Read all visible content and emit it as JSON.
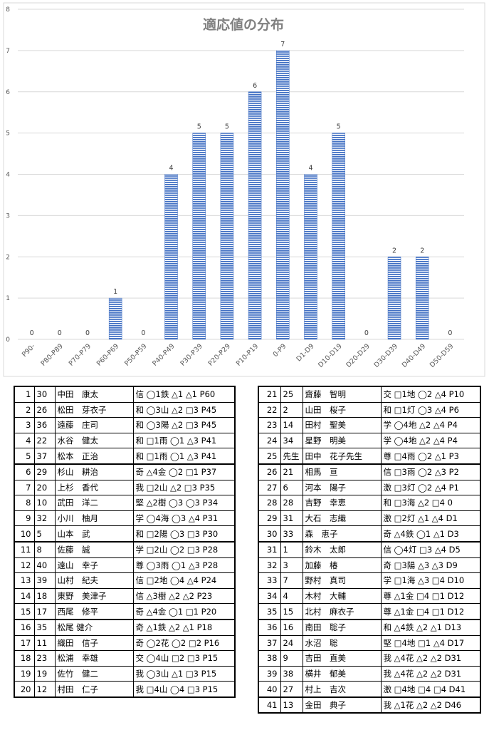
{
  "chart_data": {
    "type": "bar",
    "title": "適応値の分布",
    "categories": [
      "P90-",
      "P80-P89",
      "P70-P79",
      "P60-P69",
      "P50-P59",
      "P40-P49",
      "P30-P39",
      "P20-P29",
      "P10-P19",
      "0-P9",
      "D1-D9",
      "D10-D19",
      "D20-D29",
      "D30-D39",
      "D40-D49",
      "D50-D59"
    ],
    "values": [
      0,
      0,
      0,
      1,
      0,
      4,
      5,
      5,
      6,
      7,
      4,
      5,
      0,
      2,
      2,
      0
    ],
    "ylim": [
      0,
      8
    ],
    "yticks": [
      "0",
      "1",
      "2",
      "3",
      "4",
      "5",
      "6",
      "7",
      "8"
    ],
    "grid": true,
    "bar_color": "#4472C4",
    "xlabel": "",
    "ylabel": ""
  },
  "table_left": [
    [
      "1",
      "30",
      "中田　康太",
      "信 ◯1鉄 △1 △1 P60"
    ],
    [
      "2",
      "26",
      "松田　芽衣子",
      "和 ◯3山 △2 □3 P45"
    ],
    [
      "3",
      "36",
      "遠藤　庄司",
      "和 ◯3陽 △2 □3 P45"
    ],
    [
      "4",
      "22",
      "水谷　健太",
      "和 □1雨 ◯1 △3 P41"
    ],
    [
      "5",
      "37",
      "松本　正治",
      "和 □1雨 ◯1 △3 P41"
    ],
    [
      "6",
      "29",
      "杉山　耕治",
      "奇 △4金 ◯2 □1 P37"
    ],
    [
      "7",
      "20",
      "上杉　香代",
      "我 □2山 △2 □3 P35"
    ],
    [
      "8",
      "10",
      "武田　洋二",
      "堅 △2樹 ◯3 ◯3 P34"
    ],
    [
      "9",
      "32",
      "小川　柚月",
      "学 ◯4海 ◯3 △4 P31"
    ],
    [
      "10",
      "5",
      "山本　武",
      "和 □2陽 ◯3 □3 P30"
    ],
    [
      "11",
      "8",
      "佐藤　誠",
      "学 □2山 ◯2 □3 P28"
    ],
    [
      "12",
      "40",
      "遠山　幸子",
      "尊 ◯3雨 ◯1 △3 P28"
    ],
    [
      "13",
      "39",
      "山村　紀夫",
      "信 □2地 ◯4 △4 P24"
    ],
    [
      "14",
      "18",
      "東野　美津子",
      "信 △3樹 △2 △2 P23"
    ],
    [
      "15",
      "17",
      "西尾　修平",
      "奇 △4金 ◯1 □1 P20"
    ],
    [
      "16",
      "35",
      "松尾 健介",
      "奇 △1鉄 △2 △1 P18"
    ],
    [
      "17",
      "11",
      "織田　信子",
      "奇 ◯2花 ◯2 □2 P16"
    ],
    [
      "18",
      "23",
      "松浦　幸雄",
      "交 ◯4山 □2 □3 P15"
    ],
    [
      "19",
      "19",
      "佐竹　健二",
      "我 ◯3山 △1 □3 P15"
    ],
    [
      "20",
      "12",
      "村田　仁子",
      "我 □4山 ◯4 □3 P15"
    ]
  ],
  "table_right": [
    [
      "21",
      "25",
      "齋藤　智明",
      "交 □1地 ◯2 △4 P10"
    ],
    [
      "22",
      "2",
      "山田　桜子",
      "和 □1灯 ◯3 △4 P6"
    ],
    [
      "23",
      "14",
      "田村　聖美",
      "学 ◯4地 △2 △4 P4"
    ],
    [
      "24",
      "34",
      "星野　明美",
      "学 ◯4地 △2 △4 P4"
    ],
    [
      "25",
      "先生",
      "田中　花子先生",
      "尊 □4雨 ◯2 △1 P3"
    ],
    [
      "26",
      "21",
      "相馬　亘",
      "信 □3雨 ◯2 △3 P2"
    ],
    [
      "27",
      "6",
      "河本　陽子",
      "激 □3灯 ◯2 △4 P1"
    ],
    [
      "28",
      "28",
      "吉野　幸恵",
      "和 □3海 △2 □4 0"
    ],
    [
      "29",
      "31",
      "大石　志織",
      "激 □2灯 △1 △4 D1"
    ],
    [
      "30",
      "33",
      "森　恵子",
      "奇 △4鉄 ◯1 △1 D3"
    ],
    [
      "31",
      "1",
      "鈴木　太郎",
      "信 ◯4灯 □3 △4 D5"
    ],
    [
      "32",
      "3",
      "加藤　椿",
      "奇 □3陽 △3 △3 D9"
    ],
    [
      "33",
      "7",
      "野村　真司",
      "学 □1海 △3 □4 D10"
    ],
    [
      "34",
      "4",
      "木村　大輔",
      "尊 △1金 □4 □1 D12"
    ],
    [
      "35",
      "15",
      "北村　麻衣子",
      "尊 △1金 □4 □1 D12"
    ],
    [
      "36",
      "16",
      "南田　聡子",
      "和 △4鉄 △2 △1 D13"
    ],
    [
      "37",
      "24",
      "水沼　聡",
      "堅 □4地 □1 △4 D17"
    ],
    [
      "38",
      "9",
      "吉田　直美",
      "我 △4花 △2 △2 D31"
    ],
    [
      "39",
      "38",
      "横井　郁美",
      "我 △4花 △2 △2 D31"
    ],
    [
      "40",
      "27",
      "村上　吉次",
      "激 □4地 □4 □4 D41"
    ],
    [
      "41",
      "13",
      "金田　典子",
      "我 △1花 △2 △2 D46"
    ]
  ]
}
